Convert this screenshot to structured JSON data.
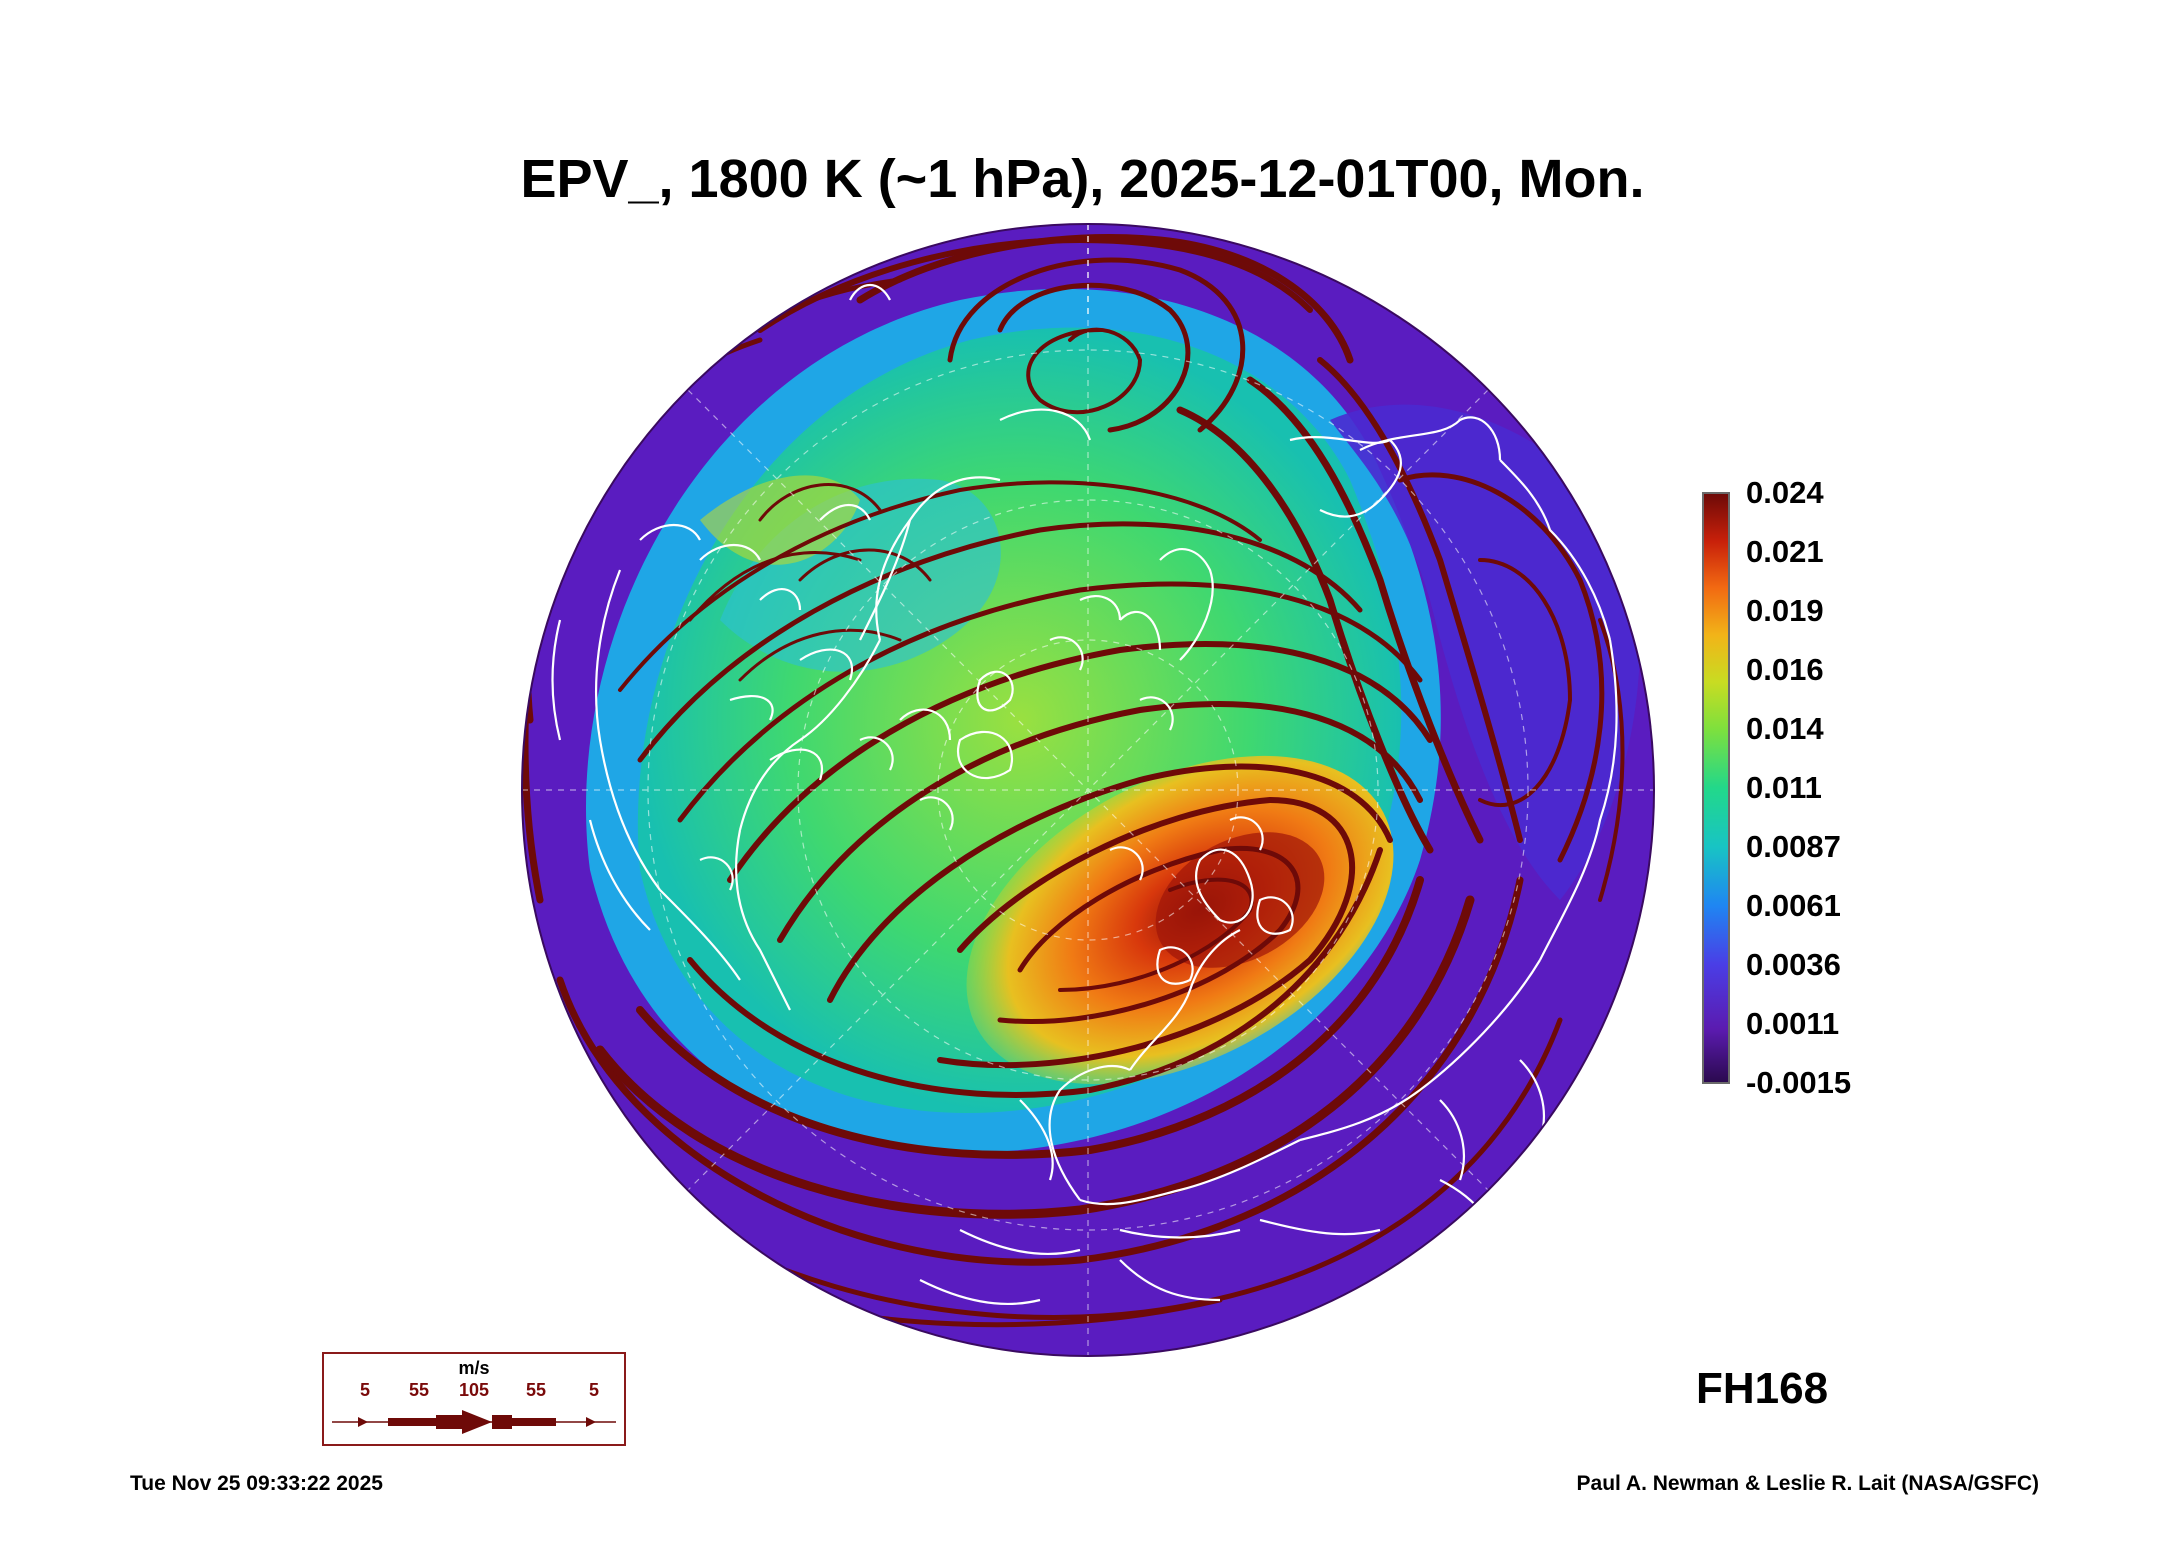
{
  "title": "EPV_, 1800 K (~1 hPa), 2025-12-01T00, Mon.",
  "colorbar": {
    "ticks": [
      "0.024",
      "0.021",
      "0.019",
      "0.016",
      "0.014",
      "0.011",
      "0.0087",
      "0.0061",
      "0.0036",
      "0.0011",
      "-0.0015"
    ],
    "colors": [
      "#2b0a4f",
      "#5b1bb0",
      "#4a3ee6",
      "#1f86f2",
      "#18c4c4",
      "#22d88a",
      "#7ee03d",
      "#c8dc22",
      "#f2b418",
      "#f26a12",
      "#c8200a",
      "#6e0a08"
    ]
  },
  "forecast_hour": "FH168",
  "vector_key": {
    "unit": "m/s",
    "labels": [
      "5",
      "55",
      "105",
      "55",
      "5"
    ],
    "color": "#6e0a08"
  },
  "footer": {
    "timestamp": "Tue Nov 25 09:33:22 2025",
    "credit": "Paul A. Newman & Leslie R. Lait (NASA/GSFC)"
  },
  "map": {
    "projection": "orthographic, north polar",
    "field": "EPV_",
    "streamline_color": "#6e0a08",
    "coastline_color": "#ffffff"
  }
}
